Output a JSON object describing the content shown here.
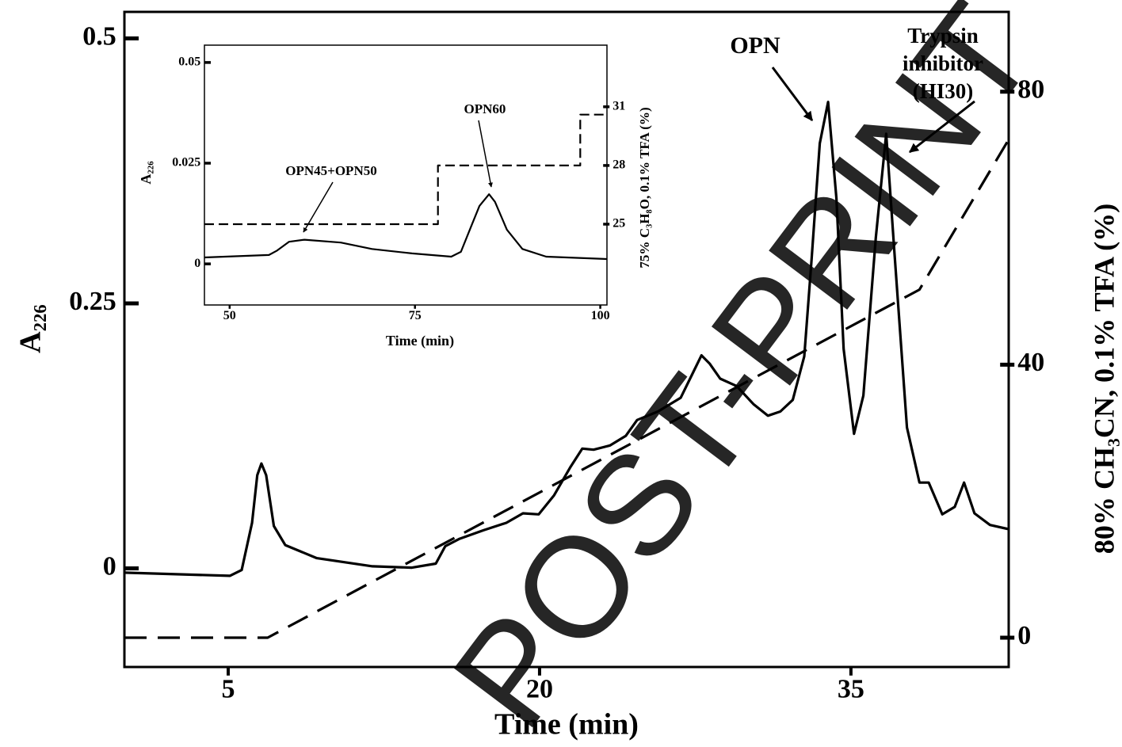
{
  "chart_data": [
    {
      "type": "line",
      "x_label": "Time (min)",
      "y_label": "A₂₂₆",
      "y2_label": "80% CH₃CN, 0.1% TFA (%)",
      "xlim": [
        0,
        42.6
      ],
      "ylim": [
        -0.093,
        0.525
      ],
      "y2lim": [
        -4.3,
        91.7
      ],
      "xticks": [
        5,
        20,
        35
      ],
      "yticks": [
        0,
        0.25,
        0.5
      ],
      "y2ticks": [
        0,
        40,
        80
      ],
      "series": [
        {
          "color": "#000000",
          "style": "solid",
          "x": [
            0,
            5.08,
            5.65,
            6.15,
            6.4,
            6.6,
            6.83,
            7.2,
            7.75,
            9.27,
            11.95,
            13.85,
            15,
            15.46,
            16.15,
            17.3,
            18.4,
            19.2,
            19.96,
            20.7,
            21.5,
            22.06,
            22.6,
            23.4,
            24.15,
            24.7,
            25.7,
            26.8,
            27.4,
            27.8,
            28.2,
            28.7,
            29.5,
            30.3,
            31,
            31.6,
            32.2,
            32.75,
            33.1,
            33.5,
            33.9,
            34.3,
            34.65,
            35.15,
            35.6,
            36.2,
            36.7,
            37.1,
            37.7,
            38.3,
            38.75,
            39.4,
            40,
            40.45,
            40.95,
            41.7,
            42.6
          ],
          "values": [
            -0.004,
            -0.007,
            -0.0015,
            0.043,
            0.088,
            0.099,
            0.088,
            0.04,
            0.022,
            0.0097,
            0.002,
            0.0007,
            0.0045,
            0.021,
            0.028,
            0.036,
            0.043,
            0.052,
            0.051,
            0.069,
            0.096,
            0.113,
            0.112,
            0.116,
            0.125,
            0.14,
            0.148,
            0.161,
            0.185,
            0.201,
            0.193,
            0.179,
            0.172,
            0.155,
            0.144,
            0.148,
            0.159,
            0.2,
            0.29,
            0.401,
            0.44,
            0.349,
            0.207,
            0.127,
            0.163,
            0.312,
            0.41,
            0.297,
            0.133,
            0.081,
            0.081,
            0.051,
            0.058,
            0.081,
            0.052,
            0.041,
            0.037
          ]
        },
        {
          "color": "#000000",
          "style": "dashed",
          "axis": "y2",
          "x": [
            0,
            6.9,
            38.3,
            42.6
          ],
          "values": [
            0,
            0,
            51,
            73
          ]
        }
      ],
      "annotations": [
        {
          "lines": [
            "OPN"
          ]
        },
        {
          "lines": [
            "Trypsin",
            "inhibitor",
            "(HI30)"
          ]
        }
      ],
      "watermark": "POST-PRINT"
    },
    {
      "type": "line",
      "x_label": "Time (min)",
      "y_label": "A₂₂₆",
      "y2_label": "75% C₃H₈O, 0.1% TFA (%)",
      "xlim": [
        46.6,
        100.9
      ],
      "ylim": [
        -0.0102,
        0.0543
      ],
      "y2lim": [
        20.87,
        34.15
      ],
      "xticks": [
        50,
        75,
        100
      ],
      "yticks": [
        0,
        0.025,
        0.05
      ],
      "y2ticks": [
        25,
        28,
        31
      ],
      "series": [
        {
          "color": "#000000",
          "style": "solid",
          "x": [
            46.6,
            55.3,
            56.4,
            58,
            60.1,
            65,
            69.2,
            74.6,
            79.9,
            81.2,
            82.6,
            83.7,
            85,
            85.8,
            87.4,
            89.5,
            92.7,
            100.9
          ],
          "values": [
            0.0016,
            0.0022,
            0.0033,
            0.0055,
            0.006,
            0.0053,
            0.0037,
            0.0026,
            0.0018,
            0.003,
            0.0094,
            0.0144,
            0.0173,
            0.0154,
            0.0085,
            0.0037,
            0.0018,
            0.0012
          ]
        },
        {
          "color": "#000000",
          "style": "dashed",
          "axis": "y2",
          "x": [
            46.6,
            78.1,
            78.1,
            97.3,
            97.3,
            100.9
          ],
          "values": [
            25,
            25,
            28,
            28,
            30.6,
            30.6
          ]
        }
      ],
      "annotations": [
        {
          "lines": [
            "OPN45+OPN50"
          ]
        },
        {
          "lines": [
            "OPN60"
          ]
        }
      ]
    }
  ]
}
